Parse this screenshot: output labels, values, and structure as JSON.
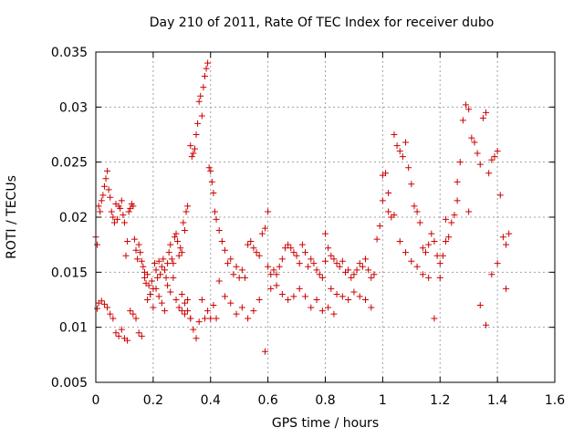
{
  "chart_data": {
    "type": "scatter",
    "title": "Day 210 of 2011, Rate Of TEC Index for receiver dubo",
    "xlabel": "GPS time / hours",
    "ylabel": "ROTI / TECUs",
    "xlim": [
      0,
      1.6
    ],
    "ylim": [
      0.005,
      0.035
    ],
    "xticks": [
      "0",
      "0.2",
      "0.4",
      "0.6",
      "0.8",
      "1",
      "1.2",
      "1.4",
      "1.6"
    ],
    "yticks": [
      "0.005",
      "0.01",
      "0.015",
      "0.02",
      "0.025",
      "0.03",
      "0.035"
    ],
    "grid": true,
    "marker": "+",
    "colors": {
      "points": "#cc0000",
      "grid": "#a0a0a0",
      "axes": "#000000"
    },
    "series": [
      {
        "x": [
          0.0,
          0.005,
          0.01,
          0.015,
          0.02,
          0.025,
          0.03,
          0.035,
          0.04,
          0.045,
          0.05,
          0.055,
          0.06,
          0.065,
          0.07,
          0.075,
          0.08,
          0.085,
          0.09,
          0.095,
          0.1,
          0.105,
          0.11,
          0.115,
          0.12,
          0.125,
          0.13,
          0.135,
          0.14,
          0.145,
          0.15,
          0.155,
          0.16,
          0.165,
          0.17,
          0.005,
          0.01,
          0.02,
          0.03,
          0.04,
          0.05,
          0.06,
          0.07,
          0.08,
          0.09,
          0.1,
          0.11,
          0.12,
          0.13,
          0.14,
          0.15,
          0.16,
          0.17,
          0.175,
          0.18,
          0.185,
          0.19,
          0.195,
          0.2,
          0.205,
          0.21,
          0.215,
          0.22,
          0.225,
          0.23,
          0.235,
          0.24,
          0.245,
          0.25,
          0.255,
          0.26,
          0.265,
          0.27,
          0.275,
          0.28,
          0.285,
          0.29,
          0.295,
          0.3,
          0.305,
          0.31,
          0.315,
          0.32,
          0.18,
          0.19,
          0.2,
          0.21,
          0.22,
          0.23,
          0.24,
          0.25,
          0.26,
          0.27,
          0.28,
          0.29,
          0.3,
          0.31,
          0.32,
          0.33,
          0.33,
          0.335,
          0.34,
          0.345,
          0.35,
          0.355,
          0.36,
          0.365,
          0.37,
          0.375,
          0.38,
          0.385,
          0.39,
          0.395,
          0.4,
          0.405,
          0.41,
          0.415,
          0.3,
          0.31,
          0.32,
          0.33,
          0.34,
          0.35,
          0.36,
          0.37,
          0.38,
          0.39,
          0.4,
          0.41,
          0.42,
          0.42,
          0.43,
          0.44,
          0.45,
          0.46,
          0.47,
          0.48,
          0.49,
          0.5,
          0.51,
          0.52,
          0.53,
          0.54,
          0.55,
          0.56,
          0.57,
          0.58,
          0.59,
          0.6,
          0.43,
          0.45,
          0.47,
          0.49,
          0.51,
          0.53,
          0.55,
          0.57,
          0.59,
          0.6,
          0.61,
          0.62,
          0.63,
          0.64,
          0.65,
          0.66,
          0.67,
          0.68,
          0.69,
          0.7,
          0.71,
          0.72,
          0.73,
          0.74,
          0.75,
          0.76,
          0.77,
          0.78,
          0.79,
          0.8,
          0.61,
          0.63,
          0.65,
          0.67,
          0.69,
          0.71,
          0.73,
          0.75,
          0.77,
          0.79,
          0.81,
          0.83,
          0.8,
          0.81,
          0.82,
          0.83,
          0.84,
          0.85,
          0.86,
          0.87,
          0.88,
          0.89,
          0.9,
          0.91,
          0.92,
          0.93,
          0.94,
          0.95,
          0.96,
          0.97,
          0.98,
          0.99,
          1.0,
          0.82,
          0.84,
          0.86,
          0.88,
          0.9,
          0.92,
          0.94,
          0.96,
          1.0,
          1.01,
          1.02,
          1.03,
          1.04,
          1.05,
          1.06,
          1.07,
          1.08,
          1.09,
          1.1,
          1.11,
          1.12,
          1.13,
          1.14,
          1.15,
          1.16,
          1.17,
          1.18,
          1.19,
          1.2,
          1.02,
          1.04,
          1.06,
          1.08,
          1.1,
          1.12,
          1.14,
          1.16,
          1.18,
          1.2,
          1.21,
          1.22,
          1.23,
          1.24,
          1.25,
          1.26,
          1.27,
          1.28,
          1.29,
          1.3,
          1.31,
          1.32,
          1.33,
          1.34,
          1.35,
          1.36,
          1.37,
          1.38,
          1.39,
          1.4,
          1.41,
          1.42,
          1.43,
          1.44,
          1.22,
          1.26,
          1.3,
          1.34,
          1.36,
          1.38,
          1.4,
          1.43
        ],
        "y": [
          0.0182,
          0.0175,
          0.021,
          0.0205,
          0.0215,
          0.022,
          0.0228,
          0.0235,
          0.0242,
          0.0225,
          0.0218,
          0.0205,
          0.02,
          0.0195,
          0.0212,
          0.0198,
          0.021,
          0.0208,
          0.0215,
          0.0202,
          0.0195,
          0.0165,
          0.0178,
          0.0205,
          0.0208,
          0.0212,
          0.021,
          0.018,
          0.017,
          0.0162,
          0.0175,
          0.0168,
          0.016,
          0.0155,
          0.015,
          0.0117,
          0.0122,
          0.0124,
          0.0121,
          0.0118,
          0.0112,
          0.0108,
          0.0095,
          0.0092,
          0.0098,
          0.009,
          0.0088,
          0.0115,
          0.0112,
          0.0108,
          0.0095,
          0.0092,
          0.0145,
          0.014,
          0.0148,
          0.0138,
          0.013,
          0.0142,
          0.0135,
          0.0158,
          0.0152,
          0.0145,
          0.016,
          0.0148,
          0.0155,
          0.0162,
          0.0152,
          0.0145,
          0.0158,
          0.0168,
          0.0175,
          0.0162,
          0.0158,
          0.0182,
          0.0185,
          0.0178,
          0.0165,
          0.0172,
          0.0168,
          0.0195,
          0.0188,
          0.0205,
          0.021,
          0.0125,
          0.013,
          0.0118,
          0.0135,
          0.0128,
          0.0122,
          0.0115,
          0.0138,
          0.0132,
          0.0145,
          0.0125,
          0.0118,
          0.013,
          0.0122,
          0.0115,
          0.0108,
          0.0265,
          0.0255,
          0.0258,
          0.0262,
          0.0275,
          0.0285,
          0.0305,
          0.031,
          0.0292,
          0.0318,
          0.0328,
          0.0335,
          0.034,
          0.0245,
          0.0242,
          0.0232,
          0.0222,
          0.0205,
          0.0115,
          0.0112,
          0.0125,
          0.0108,
          0.0098,
          0.009,
          0.0105,
          0.0125,
          0.0108,
          0.0115,
          0.0108,
          0.012,
          0.0108,
          0.0198,
          0.0188,
          0.0178,
          0.017,
          0.0158,
          0.0162,
          0.0148,
          0.0155,
          0.0145,
          0.0152,
          0.0145,
          0.0175,
          0.0178,
          0.0172,
          0.0168,
          0.0165,
          0.0185,
          0.019,
          0.0205,
          0.0142,
          0.0128,
          0.0122,
          0.0112,
          0.0118,
          0.0108,
          0.0115,
          0.0125,
          0.0078,
          0.0155,
          0.0148,
          0.0152,
          0.0148,
          0.0155,
          0.0162,
          0.0172,
          0.0175,
          0.0172,
          0.0168,
          0.0165,
          0.0158,
          0.0175,
          0.0168,
          0.0155,
          0.0162,
          0.0158,
          0.0152,
          0.0148,
          0.0145,
          0.016,
          0.0135,
          0.0138,
          0.013,
          0.0125,
          0.0128,
          0.0135,
          0.0128,
          0.0118,
          0.0125,
          0.0115,
          0.0118,
          0.0112,
          0.0185,
          0.0172,
          0.0165,
          0.0162,
          0.0158,
          0.0155,
          0.016,
          0.015,
          0.0152,
          0.0145,
          0.0148,
          0.0152,
          0.0158,
          0.0155,
          0.0162,
          0.0152,
          0.0145,
          0.0148,
          0.018,
          0.0192,
          0.0215,
          0.0135,
          0.013,
          0.0128,
          0.0125,
          0.0132,
          0.0128,
          0.0125,
          0.0118,
          0.0238,
          0.024,
          0.0205,
          0.02,
          0.0275,
          0.0265,
          0.026,
          0.0255,
          0.0268,
          0.0245,
          0.023,
          0.021,
          0.0205,
          0.0195,
          0.0172,
          0.0168,
          0.0175,
          0.0185,
          0.0178,
          0.0165,
          0.0158,
          0.0222,
          0.0202,
          0.0178,
          0.0168,
          0.016,
          0.0155,
          0.0148,
          0.0145,
          0.0108,
          0.0145,
          0.0165,
          0.0178,
          0.0182,
          0.0195,
          0.0202,
          0.0232,
          0.025,
          0.0288,
          0.0302,
          0.0298,
          0.0272,
          0.0268,
          0.0258,
          0.0248,
          0.029,
          0.0295,
          0.024,
          0.0252,
          0.0255,
          0.026,
          0.022,
          0.0182,
          0.0175,
          0.0185,
          0.0198,
          0.0215,
          0.0205,
          0.012,
          0.0102,
          0.0148,
          0.0158,
          0.0135
        ]
      }
    ]
  }
}
